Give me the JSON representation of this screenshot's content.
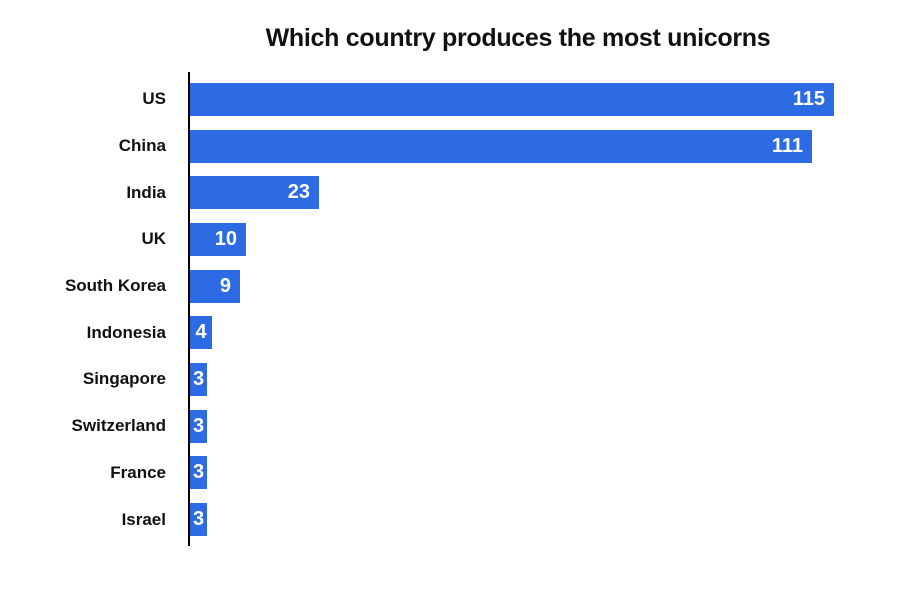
{
  "title": "Which country produces the most unicorns",
  "colors": {
    "bar": "#2D6BE4",
    "axis": "#000000",
    "title_text": "#111111",
    "category_text": "#111111",
    "value_text": "#FFFFFF",
    "background": "#FFFFFF"
  },
  "chart_data": {
    "type": "bar",
    "orientation": "horizontal",
    "title": "Which country produces the most unicorns",
    "categories": [
      "US",
      "China",
      "India",
      "UK",
      "South Korea",
      "Indonesia",
      "Singapore",
      "Switzerland",
      "France",
      "Israel"
    ],
    "values": [
      115,
      111,
      23,
      10,
      9,
      4,
      3,
      3,
      3,
      3
    ],
    "xlabel": "",
    "ylabel": "",
    "xlim": [
      0,
      126
    ],
    "grid": false,
    "legend": "none",
    "value_labels": "inside-end",
    "bar_color": "#2D6BE4"
  }
}
